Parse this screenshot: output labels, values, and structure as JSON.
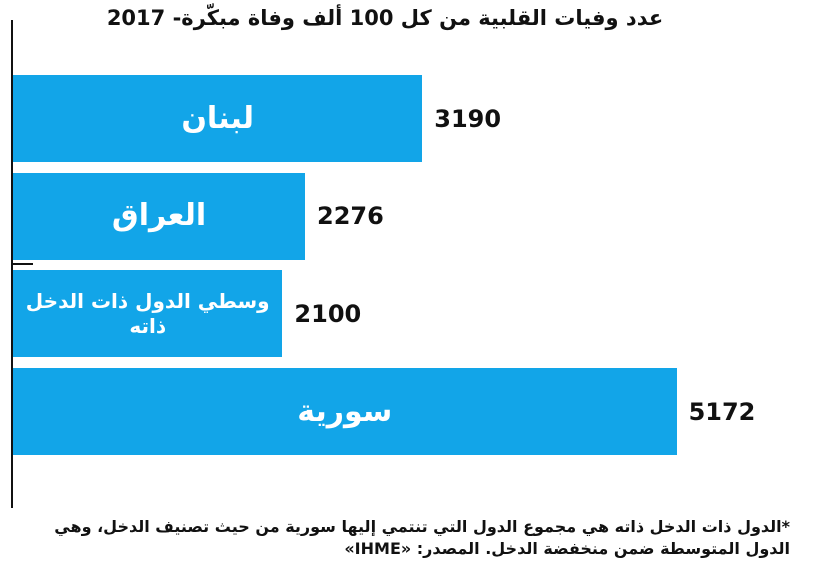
{
  "chart_data": {
    "type": "bar",
    "orientation": "horizontal",
    "title": "عدد وفيات القلبية من كل 100 ألف وفاة مبكّرة- 2017",
    "categories": [
      "لبنان",
      "العراق",
      "وسطي الدول ذات الدخل ذاته",
      "سورية"
    ],
    "values": [
      3190,
      2276,
      2100,
      5172
    ],
    "color": "#12a5e8",
    "xlim": [
      0,
      5300
    ],
    "note": "*الدول ذات الدخل ذاته هي مجموع الدول التي تنتمي إليها سورية من حيث تصنيف الدخل، وهي الدول المتوسطة ضمن منخفضة الدخل. المصدر: «IHME»"
  }
}
